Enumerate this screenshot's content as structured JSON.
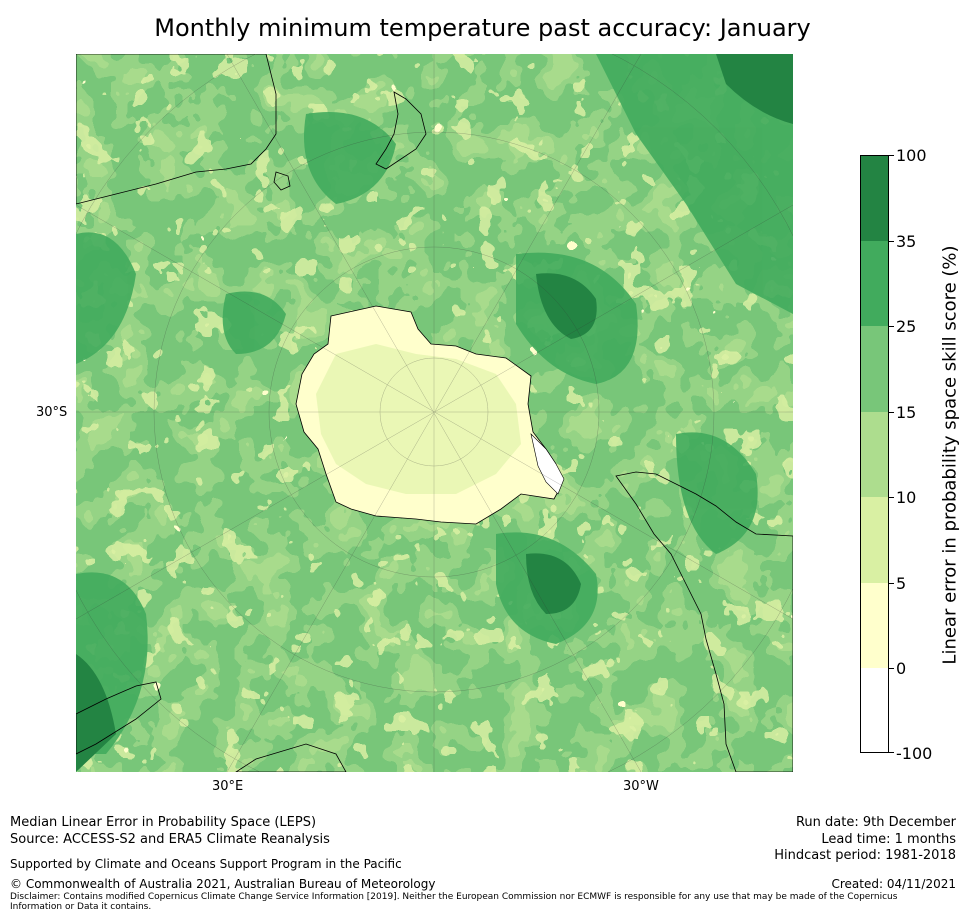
{
  "title": "Monthly minimum temperature past accuracy: January",
  "map": {
    "projection": "south-polar-stereographic",
    "lat_label": "30°S",
    "lon_labels": [
      "30°E",
      "30°W"
    ],
    "colors": {
      "bin_neg100_0": "#ffffff",
      "bin_0_5": "#ffffcc",
      "bin_5_10": "#d9f0a3",
      "bin_10_15": "#addd8e",
      "bin_15_25": "#78c679",
      "bin_25_35": "#41ab5d",
      "bin_35_100": "#238443",
      "coast": "#000000"
    }
  },
  "colorbar": {
    "label": "Linear error in probability space skill score (%)",
    "ticks": [
      "100",
      "35",
      "25",
      "15",
      "10",
      "5",
      "0",
      "-100"
    ],
    "bins": [
      {
        "from": 35,
        "to": 100,
        "color": "#238443"
      },
      {
        "from": 25,
        "to": 35,
        "color": "#41ab5d"
      },
      {
        "from": 15,
        "to": 25,
        "color": "#78c679"
      },
      {
        "from": 10,
        "to": 15,
        "color": "#addd8e"
      },
      {
        "from": 5,
        "to": 10,
        "color": "#d9f0a3"
      },
      {
        "from": 0,
        "to": 5,
        "color": "#ffffcc"
      },
      {
        "from": -100,
        "to": 0,
        "color": "#ffffff"
      }
    ]
  },
  "footer": {
    "method": "Median Linear Error in Probability Space (LEPS)",
    "source": "Source: ACCESS-S2 and ERA5 Climate Reanalysis",
    "support": "Supported by Climate and Oceans Support Program in the Pacific",
    "copyright": "© Commonwealth of Australia 2021, Australian Bureau of Meteorology",
    "disclaimer": "Disclaimer: Contains modified Copernicus Climate Change Service Information [2019]. Neither the European Commission nor ECMWF is responsible for any use that may be made of the Copernicus Information or Data it contains.",
    "run_date": "Run date: 9th December",
    "lead_time": "Lead time: 1 months",
    "hindcast": "Hindcast period: 1981-2018",
    "created": "Created: 04/11/2021"
  }
}
